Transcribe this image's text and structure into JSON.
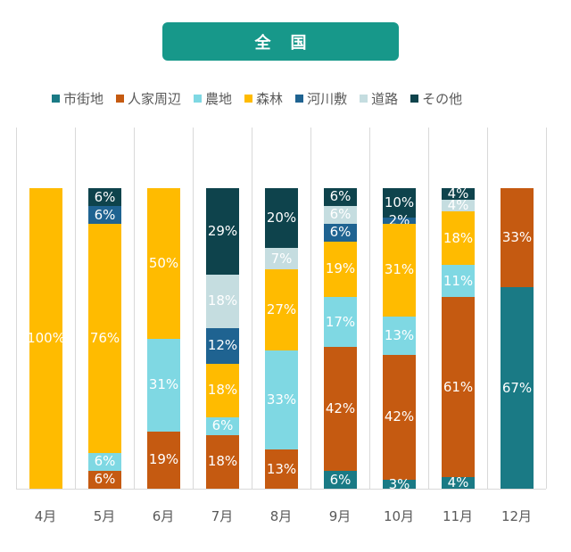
{
  "header": {
    "title": "全国"
  },
  "legend": [
    {
      "label": "市街地",
      "color": "#1a7a85"
    },
    {
      "label": "人家周辺",
      "color": "#c55a11"
    },
    {
      "label": "農地",
      "color": "#7fd8e3"
    },
    {
      "label": "森林",
      "color": "#ffbb00"
    },
    {
      "label": "河川敷",
      "color": "#1f6391"
    },
    {
      "label": "道路",
      "color": "#c5dde0"
    },
    {
      "label": "その他",
      "color": "#0e434c"
    }
  ],
  "chart_data": {
    "type": "bar",
    "stacked": true,
    "normalized": true,
    "title": "全国",
    "xlabel": "",
    "ylabel": "",
    "ylim": [
      0,
      100
    ],
    "grid": "vertical separators",
    "legend_position": "top",
    "categories": [
      "4月",
      "5月",
      "6月",
      "7月",
      "8月",
      "9月",
      "10月",
      "11月",
      "12月"
    ],
    "series": [
      {
        "name": "市街地",
        "color": "#1a7a85",
        "values": [
          0,
          0,
          0,
          0,
          0,
          6,
          3,
          4,
          67
        ]
      },
      {
        "name": "人家周辺",
        "color": "#c55a11",
        "values": [
          0,
          6,
          19,
          18,
          13,
          42,
          42,
          61,
          33
        ]
      },
      {
        "name": "農地",
        "color": "#7fd8e3",
        "values": [
          0,
          6,
          31,
          6,
          33,
          17,
          13,
          11,
          0
        ]
      },
      {
        "name": "森林",
        "color": "#ffbb00",
        "values": [
          100,
          76,
          50,
          18,
          27,
          19,
          31,
          18,
          0
        ]
      },
      {
        "name": "河川敷",
        "color": "#1f6391",
        "values": [
          0,
          6,
          0,
          12,
          0,
          6,
          2,
          0,
          0
        ]
      },
      {
        "name": "道路",
        "color": "#c5dde0",
        "values": [
          0,
          0,
          0,
          18,
          7,
          6,
          0,
          4,
          0
        ]
      },
      {
        "name": "その他",
        "color": "#0e434c",
        "values": [
          0,
          6,
          0,
          29,
          20,
          6,
          10,
          4,
          0
        ]
      }
    ]
  }
}
